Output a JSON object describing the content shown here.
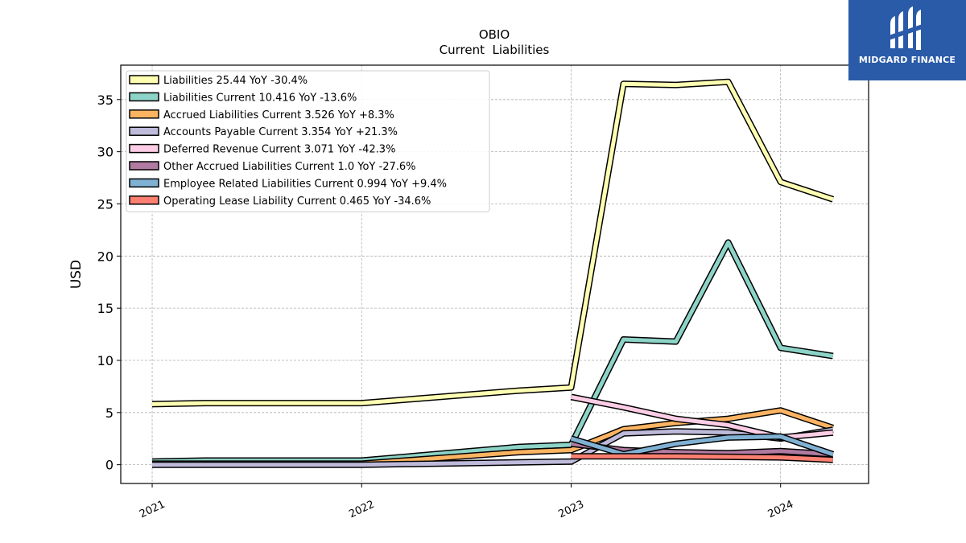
{
  "brand": {
    "name": "MIDGARD FINANCE",
    "color": "#2a5ba8",
    "icon": "midgard-logo-icon"
  },
  "chart_data": {
    "type": "line",
    "title": "OBIO",
    "subtitle": "Current  Liabilities",
    "xlabel": "",
    "ylabel": "USD",
    "xlim": [
      2020.85,
      2024.42
    ],
    "ylim": [
      -1.8,
      38.3
    ],
    "yticks": [
      0,
      5,
      10,
      15,
      20,
      25,
      30,
      35
    ],
    "xticks": [
      {
        "value": 2021,
        "label": "2021"
      },
      {
        "value": 2022,
        "label": "2022"
      },
      {
        "value": 2023,
        "label": "2023"
      },
      {
        "value": 2024,
        "label": "2024"
      }
    ],
    "grid": true,
    "legend_position": "top-left",
    "series": [
      {
        "name": "Liabilities  25.44 YoY -30.4%",
        "color": "#ffffb3",
        "points": [
          [
            2021.0,
            5.8
          ],
          [
            2021.25,
            5.9
          ],
          [
            2022.0,
            5.9
          ],
          [
            2022.75,
            7.1
          ],
          [
            2023.0,
            7.4
          ],
          [
            2023.25,
            36.5
          ],
          [
            2023.5,
            36.4
          ],
          [
            2023.75,
            36.7
          ],
          [
            2024.0,
            27.1
          ],
          [
            2024.25,
            25.44
          ]
        ]
      },
      {
        "name": "Liabilities Current  10.416 YoY -13.6%",
        "color": "#8dd3c7",
        "points": [
          [
            2021.0,
            0.3
          ],
          [
            2021.25,
            0.4
          ],
          [
            2022.0,
            0.4
          ],
          [
            2022.75,
            1.7
          ],
          [
            2023.0,
            1.9
          ],
          [
            2023.25,
            12.0
          ],
          [
            2023.5,
            11.8
          ],
          [
            2023.75,
            21.3
          ],
          [
            2024.0,
            11.2
          ],
          [
            2024.25,
            10.416
          ]
        ]
      },
      {
        "name": "Accrued Liabilities Current  3.526 YoY +8.3%",
        "color": "#fdb462",
        "points": [
          [
            2021.0,
            0.1
          ],
          [
            2022.0,
            0.1
          ],
          [
            2022.75,
            1.2
          ],
          [
            2023.0,
            1.4
          ],
          [
            2023.25,
            3.4
          ],
          [
            2023.5,
            4.0
          ],
          [
            2023.75,
            4.4
          ],
          [
            2024.0,
            5.2
          ],
          [
            2024.25,
            3.526
          ]
        ]
      },
      {
        "name": "Accounts Payable Current  3.354 YoY +21.3%",
        "color": "#bebada",
        "points": [
          [
            2021.0,
            0.0
          ],
          [
            2022.0,
            0.0
          ],
          [
            2023.0,
            0.3
          ],
          [
            2023.25,
            3.0
          ],
          [
            2023.5,
            3.2
          ],
          [
            2023.75,
            3.1
          ],
          [
            2024.0,
            2.5
          ],
          [
            2024.25,
            3.354
          ]
        ]
      },
      {
        "name": "Deferred Revenue Current  3.071 YoY -42.3%",
        "color": "#fccde5",
        "points": [
          [
            2023.0,
            6.5
          ],
          [
            2023.25,
            5.5
          ],
          [
            2023.5,
            4.4
          ],
          [
            2023.75,
            3.8
          ],
          [
            2024.0,
            2.6
          ],
          [
            2024.25,
            3.071
          ]
        ]
      },
      {
        "name": "Other Accrued Liabilities Current  1.0 YoY -27.6%",
        "color": "#b07aa1",
        "points": [
          [
            2023.0,
            2.0
          ],
          [
            2023.25,
            1.4
          ],
          [
            2023.5,
            1.2
          ],
          [
            2023.75,
            1.1
          ],
          [
            2024.0,
            1.3
          ],
          [
            2024.25,
            1.0
          ]
        ]
      },
      {
        "name": "Employee Related Liabilities Current  0.994 YoY +9.4%",
        "color": "#80b1d3",
        "points": [
          [
            2023.0,
            2.5
          ],
          [
            2023.25,
            1.0
          ],
          [
            2023.5,
            2.0
          ],
          [
            2023.75,
            2.6
          ],
          [
            2024.0,
            2.7
          ],
          [
            2024.25,
            0.994
          ]
        ]
      },
      {
        "name": "Operating Lease Liability Current  0.465 YoY -34.6%",
        "color": "#fb8072",
        "points": [
          [
            2023.0,
            0.8
          ],
          [
            2023.25,
            0.8
          ],
          [
            2023.5,
            0.8
          ],
          [
            2023.75,
            0.75
          ],
          [
            2024.0,
            0.7
          ],
          [
            2024.25,
            0.465
          ]
        ]
      }
    ]
  }
}
